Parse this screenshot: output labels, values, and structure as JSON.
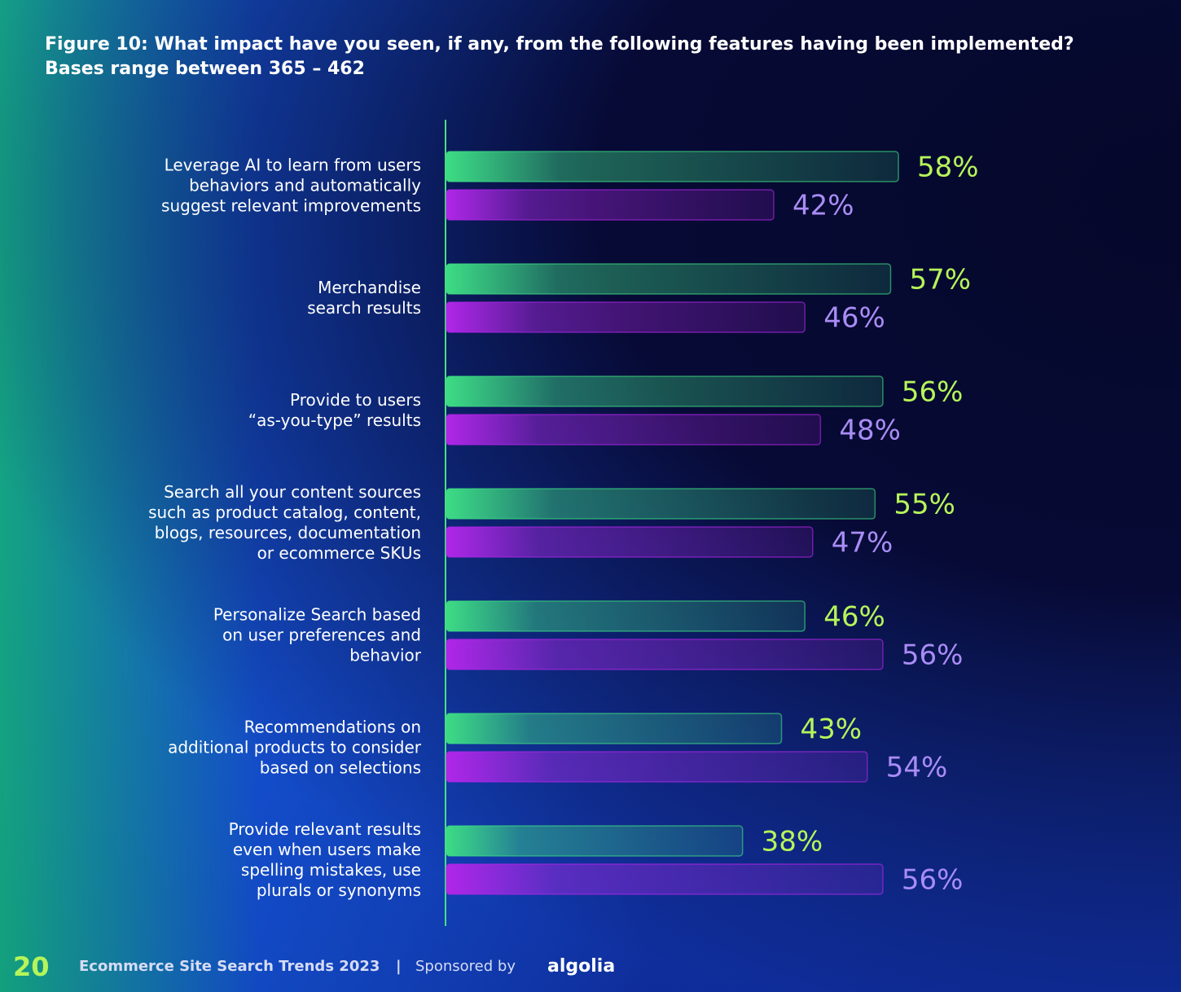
{
  "chart_data": {
    "type": "bar",
    "orientation": "horizontal",
    "title": "Figure 10: What impact have you seen, if any, from the following features having been implemented?",
    "subtitle": "Bases range between 365 – 462",
    "categories": [
      "Leverage AI to learn from users\nbehaviors and automatically\nsuggest relevant improvements",
      "Merchandise\nsearch results",
      "Provide to users\n“as-you-type” results",
      "Search all your content sources\nsuch as product catalog, content,\nblogs, resources, documentation\nor ecommerce SKUs",
      "Personalize Search based\non user preferences and\nbehavior",
      "Recommendations on\nadditional products to consider\nbased on selections",
      "Provide relevant results\neven when users make\nspelling mistakes, use\nplurals or synonyms"
    ],
    "series": [
      {
        "color": "#3ddc84",
        "label_color": "#b6f55a",
        "values": [
          58,
          57,
          56,
          55,
          46,
          43,
          38
        ],
        "value_labels": [
          "58%",
          "57%",
          "56%",
          "55%",
          "46%",
          "43%",
          "38%"
        ]
      },
      {
        "color": "#b026e8",
        "label_color": "#a98cf5",
        "values": [
          42,
          46,
          48,
          47,
          56,
          54,
          56
        ],
        "value_labels": [
          "42%",
          "46%",
          "48%",
          "47%",
          "56%",
          "54%",
          "56%"
        ]
      }
    ]
  },
  "footer": {
    "page": "20",
    "publication": "Ecommerce Site Search Trends  2023",
    "separator": "|",
    "sponsor": "Sponsored by",
    "brand": "algolia"
  }
}
